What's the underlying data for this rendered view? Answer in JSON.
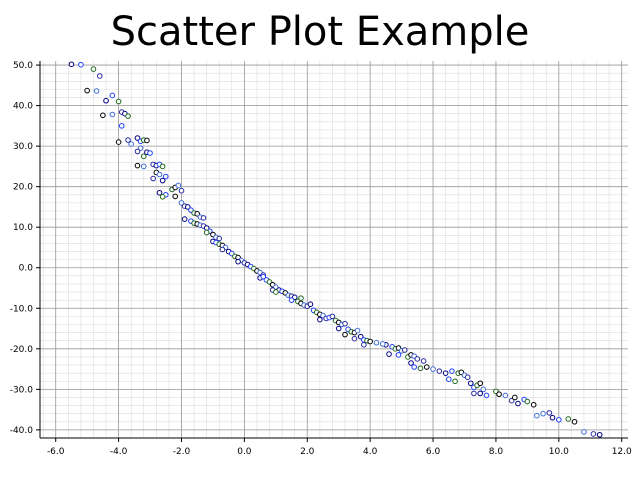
{
  "chart_data": {
    "type": "scatter",
    "title": "Scatter Plot Example",
    "xlabel": "",
    "ylabel": "",
    "xlim": [
      -6.5,
      12.2
    ],
    "ylim": [
      -42,
      51
    ],
    "x_ticks": [
      "-6.0",
      "-4.0",
      "-2.0",
      "0.0",
      "2.0",
      "4.0",
      "6.0",
      "8.0",
      "10.0",
      "12.0"
    ],
    "y_ticks": [
      "50.0",
      "40.0",
      "30.0",
      "20.0",
      "10.0",
      "0.0",
      "-10.0",
      "-20.0",
      "-30.0",
      "-40.0"
    ],
    "grid": true,
    "marker_edge_colors": [
      "#000080",
      "#1e40ff",
      "#1d6b1d",
      "#000000",
      "#3b6bd6",
      "#2a2aa0"
    ],
    "marker_fill": "#ffffff",
    "points": [
      [
        -5.5,
        50.2
      ],
      [
        -5.2,
        50.1
      ],
      [
        -4.8,
        49.0
      ],
      [
        -5.0,
        43.7
      ],
      [
        -4.7,
        43.6
      ],
      [
        -4.6,
        47.3
      ],
      [
        -4.4,
        41.2
      ],
      [
        -4.2,
        42.5
      ],
      [
        -4.0,
        41.0
      ],
      [
        -4.5,
        37.6
      ],
      [
        -4.2,
        37.8
      ],
      [
        -3.9,
        38.4
      ],
      [
        -3.8,
        38.0
      ],
      [
        -3.9,
        35.0
      ],
      [
        -3.7,
        37.4
      ],
      [
        -4.0,
        31.0
      ],
      [
        -3.6,
        30.5
      ],
      [
        -3.7,
        31.5
      ],
      [
        -3.4,
        32.0
      ],
      [
        -3.3,
        31.2
      ],
      [
        -3.2,
        31.5
      ],
      [
        -3.1,
        31.4
      ],
      [
        -3.3,
        29.5
      ],
      [
        -3.4,
        28.7
      ],
      [
        -3.1,
        28.5
      ],
      [
        -3.0,
        28.3
      ],
      [
        -3.2,
        27.5
      ],
      [
        -3.4,
        25.2
      ],
      [
        -3.2,
        25.0
      ],
      [
        -2.9,
        25.5
      ],
      [
        -2.8,
        25.2
      ],
      [
        -2.7,
        25.5
      ],
      [
        -2.6,
        25.0
      ],
      [
        -2.8,
        23.5
      ],
      [
        -2.7,
        23.0
      ],
      [
        -2.9,
        22.0
      ],
      [
        -2.6,
        21.5
      ],
      [
        -2.5,
        22.5
      ],
      [
        -2.3,
        19.3
      ],
      [
        -2.2,
        19.8
      ],
      [
        -2.1,
        20.3
      ],
      [
        -2.0,
        19.0
      ],
      [
        -2.7,
        18.5
      ],
      [
        -2.5,
        18.0
      ],
      [
        -2.6,
        17.5
      ],
      [
        -2.2,
        17.6
      ],
      [
        -2.0,
        16.0
      ],
      [
        -1.9,
        15.2
      ],
      [
        -1.8,
        15.0
      ],
      [
        -1.7,
        14.2
      ],
      [
        -1.6,
        13.5
      ],
      [
        -1.5,
        13.3
      ],
      [
        -1.4,
        12.5
      ],
      [
        -1.3,
        12.3
      ],
      [
        -1.9,
        12.0
      ],
      [
        -1.7,
        11.5
      ],
      [
        -1.6,
        11.0
      ],
      [
        -1.5,
        10.8
      ],
      [
        -1.4,
        10.5
      ],
      [
        -1.3,
        10.3
      ],
      [
        -1.2,
        9.8
      ],
      [
        -1.1,
        9.0
      ],
      [
        -1.2,
        8.7
      ],
      [
        -1.0,
        8.2
      ],
      [
        -0.9,
        7.5
      ],
      [
        -0.8,
        7.2
      ],
      [
        -1.0,
        6.5
      ],
      [
        -0.9,
        6.2
      ],
      [
        -0.8,
        5.8
      ],
      [
        -0.7,
        5.5
      ],
      [
        -0.6,
        5.0
      ],
      [
        -0.7,
        4.5
      ],
      [
        -0.5,
        4.0
      ],
      [
        -0.4,
        3.5
      ],
      [
        -0.3,
        2.8
      ],
      [
        -0.2,
        2.5
      ],
      [
        -0.1,
        1.8
      ],
      [
        0.0,
        1.2
      ],
      [
        0.1,
        0.8
      ],
      [
        0.2,
        0.3
      ],
      [
        0.3,
        -0.2
      ],
      [
        0.4,
        -0.8
      ],
      [
        0.5,
        -1.2
      ],
      [
        0.6,
        -1.8
      ],
      [
        0.5,
        -2.5
      ],
      [
        0.7,
        -3.0
      ],
      [
        0.8,
        -3.5
      ],
      [
        0.9,
        -4.2
      ],
      [
        1.0,
        -4.8
      ],
      [
        0.9,
        -5.5
      ],
      [
        1.1,
        -5.5
      ],
      [
        1.2,
        -5.8
      ],
      [
        1.0,
        -6.0
      ],
      [
        1.3,
        -6.2
      ],
      [
        1.4,
        -6.8
      ],
      [
        1.5,
        -7.0
      ],
      [
        1.6,
        -7.3
      ],
      [
        1.5,
        -8.0
      ],
      [
        1.7,
        -8.3
      ],
      [
        1.8,
        -8.8
      ],
      [
        1.9,
        -9.2
      ],
      [
        2.0,
        -9.5
      ],
      [
        2.1,
        -9.0
      ],
      [
        2.2,
        -10.5
      ],
      [
        2.3,
        -11.0
      ],
      [
        2.4,
        -11.5
      ],
      [
        2.5,
        -11.8
      ],
      [
        2.6,
        -12.5
      ],
      [
        2.4,
        -12.8
      ],
      [
        2.7,
        -12.3
      ],
      [
        2.9,
        -13.0
      ],
      [
        3.0,
        -13.5
      ],
      [
        3.1,
        -14.0
      ],
      [
        3.2,
        -13.8
      ],
      [
        3.0,
        -15.0
      ],
      [
        3.3,
        -15.2
      ],
      [
        3.4,
        -15.8
      ],
      [
        3.5,
        -16.0
      ],
      [
        3.6,
        -15.5
      ],
      [
        3.5,
        -17.5
      ],
      [
        3.7,
        -17.0
      ],
      [
        3.8,
        -17.8
      ],
      [
        3.9,
        -18.0
      ],
      [
        4.0,
        -18.2
      ],
      [
        4.2,
        -18.5
      ],
      [
        3.8,
        -19.0
      ],
      [
        4.5,
        -19.0
      ],
      [
        4.7,
        -19.5
      ],
      [
        4.8,
        -20.0
      ],
      [
        4.9,
        -19.8
      ],
      [
        5.0,
        -20.5
      ],
      [
        5.1,
        -20.3
      ],
      [
        4.6,
        -21.3
      ],
      [
        4.9,
        -21.5
      ],
      [
        5.2,
        -22.0
      ],
      [
        5.3,
        -21.5
      ],
      [
        5.4,
        -21.8
      ],
      [
        5.5,
        -22.5
      ],
      [
        5.3,
        -23.5
      ],
      [
        5.4,
        -24.5
      ],
      [
        5.6,
        -24.8
      ],
      [
        5.8,
        -24.5
      ],
      [
        6.0,
        -25.0
      ],
      [
        6.2,
        -25.5
      ],
      [
        6.4,
        -26.0
      ],
      [
        6.6,
        -25.5
      ],
      [
        6.8,
        -26.0
      ],
      [
        6.9,
        -25.8
      ],
      [
        7.0,
        -26.5
      ],
      [
        7.1,
        -27.0
      ],
      [
        7.2,
        -28.5
      ],
      [
        7.3,
        -29.5
      ],
      [
        7.4,
        -29.0
      ],
      [
        7.5,
        -28.5
      ],
      [
        7.6,
        -30.0
      ],
      [
        7.3,
        -31.0
      ],
      [
        7.5,
        -31.0
      ],
      [
        7.7,
        -31.5
      ],
      [
        8.0,
        -30.5
      ],
      [
        8.1,
        -31.2
      ],
      [
        8.3,
        -31.5
      ],
      [
        8.5,
        -32.8
      ],
      [
        8.7,
        -33.5
      ],
      [
        8.9,
        -32.5
      ],
      [
        9.0,
        -33.0
      ],
      [
        9.2,
        -33.8
      ],
      [
        9.5,
        -36.0
      ],
      [
        9.7,
        -35.8
      ],
      [
        9.8,
        -37.0
      ],
      [
        10.0,
        -37.5
      ],
      [
        10.3,
        -37.3
      ],
      [
        10.5,
        -38.0
      ],
      [
        10.8,
        -40.5
      ],
      [
        11.1,
        -41.0
      ],
      [
        11.3,
        -41.2
      ],
      [
        6.5,
        -27.5
      ],
      [
        6.7,
        -28.0
      ],
      [
        8.6,
        -32.0
      ],
      [
        9.3,
        -36.5
      ],
      [
        2.8,
        -12.0
      ],
      [
        -0.2,
        1.5
      ],
      [
        0.6,
        -2.2
      ],
      [
        1.8,
        -7.5
      ],
      [
        3.2,
        -16.5
      ],
      [
        4.4,
        -18.8
      ],
      [
        5.7,
        -23.0
      ]
    ]
  }
}
